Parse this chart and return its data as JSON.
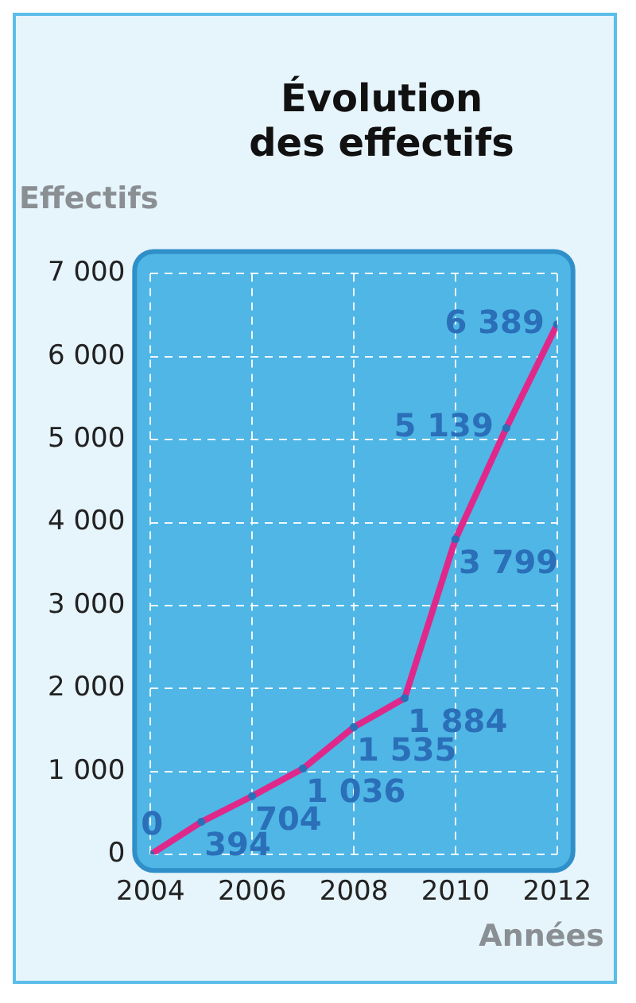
{
  "chart_data": {
    "type": "line",
    "title": "Évolution des effectifs",
    "xlabel": "Années",
    "ylabel": "Effectifs",
    "x": [
      2004,
      2005,
      2006,
      2007,
      2008,
      2009,
      2010,
      2011,
      2012
    ],
    "series": [
      {
        "color": "#e0288a",
        "values": [
          0,
          394,
          704,
          1036,
          1535,
          1884,
          3799,
          5139,
          6389
        ],
        "value_labels": [
          "0",
          "394",
          "704",
          "1 036",
          "1 535",
          "1 884",
          "3 799",
          "5 139",
          "6 389"
        ]
      }
    ],
    "xlim": [
      2004,
      2012
    ],
    "xticks": [
      2004,
      2006,
      2008,
      2010,
      2012
    ],
    "ylim": [
      0,
      7000
    ],
    "yticks": [
      {
        "value": 0,
        "label": "0"
      },
      {
        "value": 1000,
        "label": "1 000"
      },
      {
        "value": 2000,
        "label": "2 000"
      },
      {
        "value": 3000,
        "label": "3 000"
      },
      {
        "value": 4000,
        "label": "4 000"
      },
      {
        "value": 5000,
        "label": "5 000"
      },
      {
        "value": 6000,
        "label": "6 000"
      },
      {
        "value": 7000,
        "label": "7 000"
      }
    ],
    "grid": true,
    "marker": "circle",
    "line_style": "solid",
    "legend": false
  }
}
